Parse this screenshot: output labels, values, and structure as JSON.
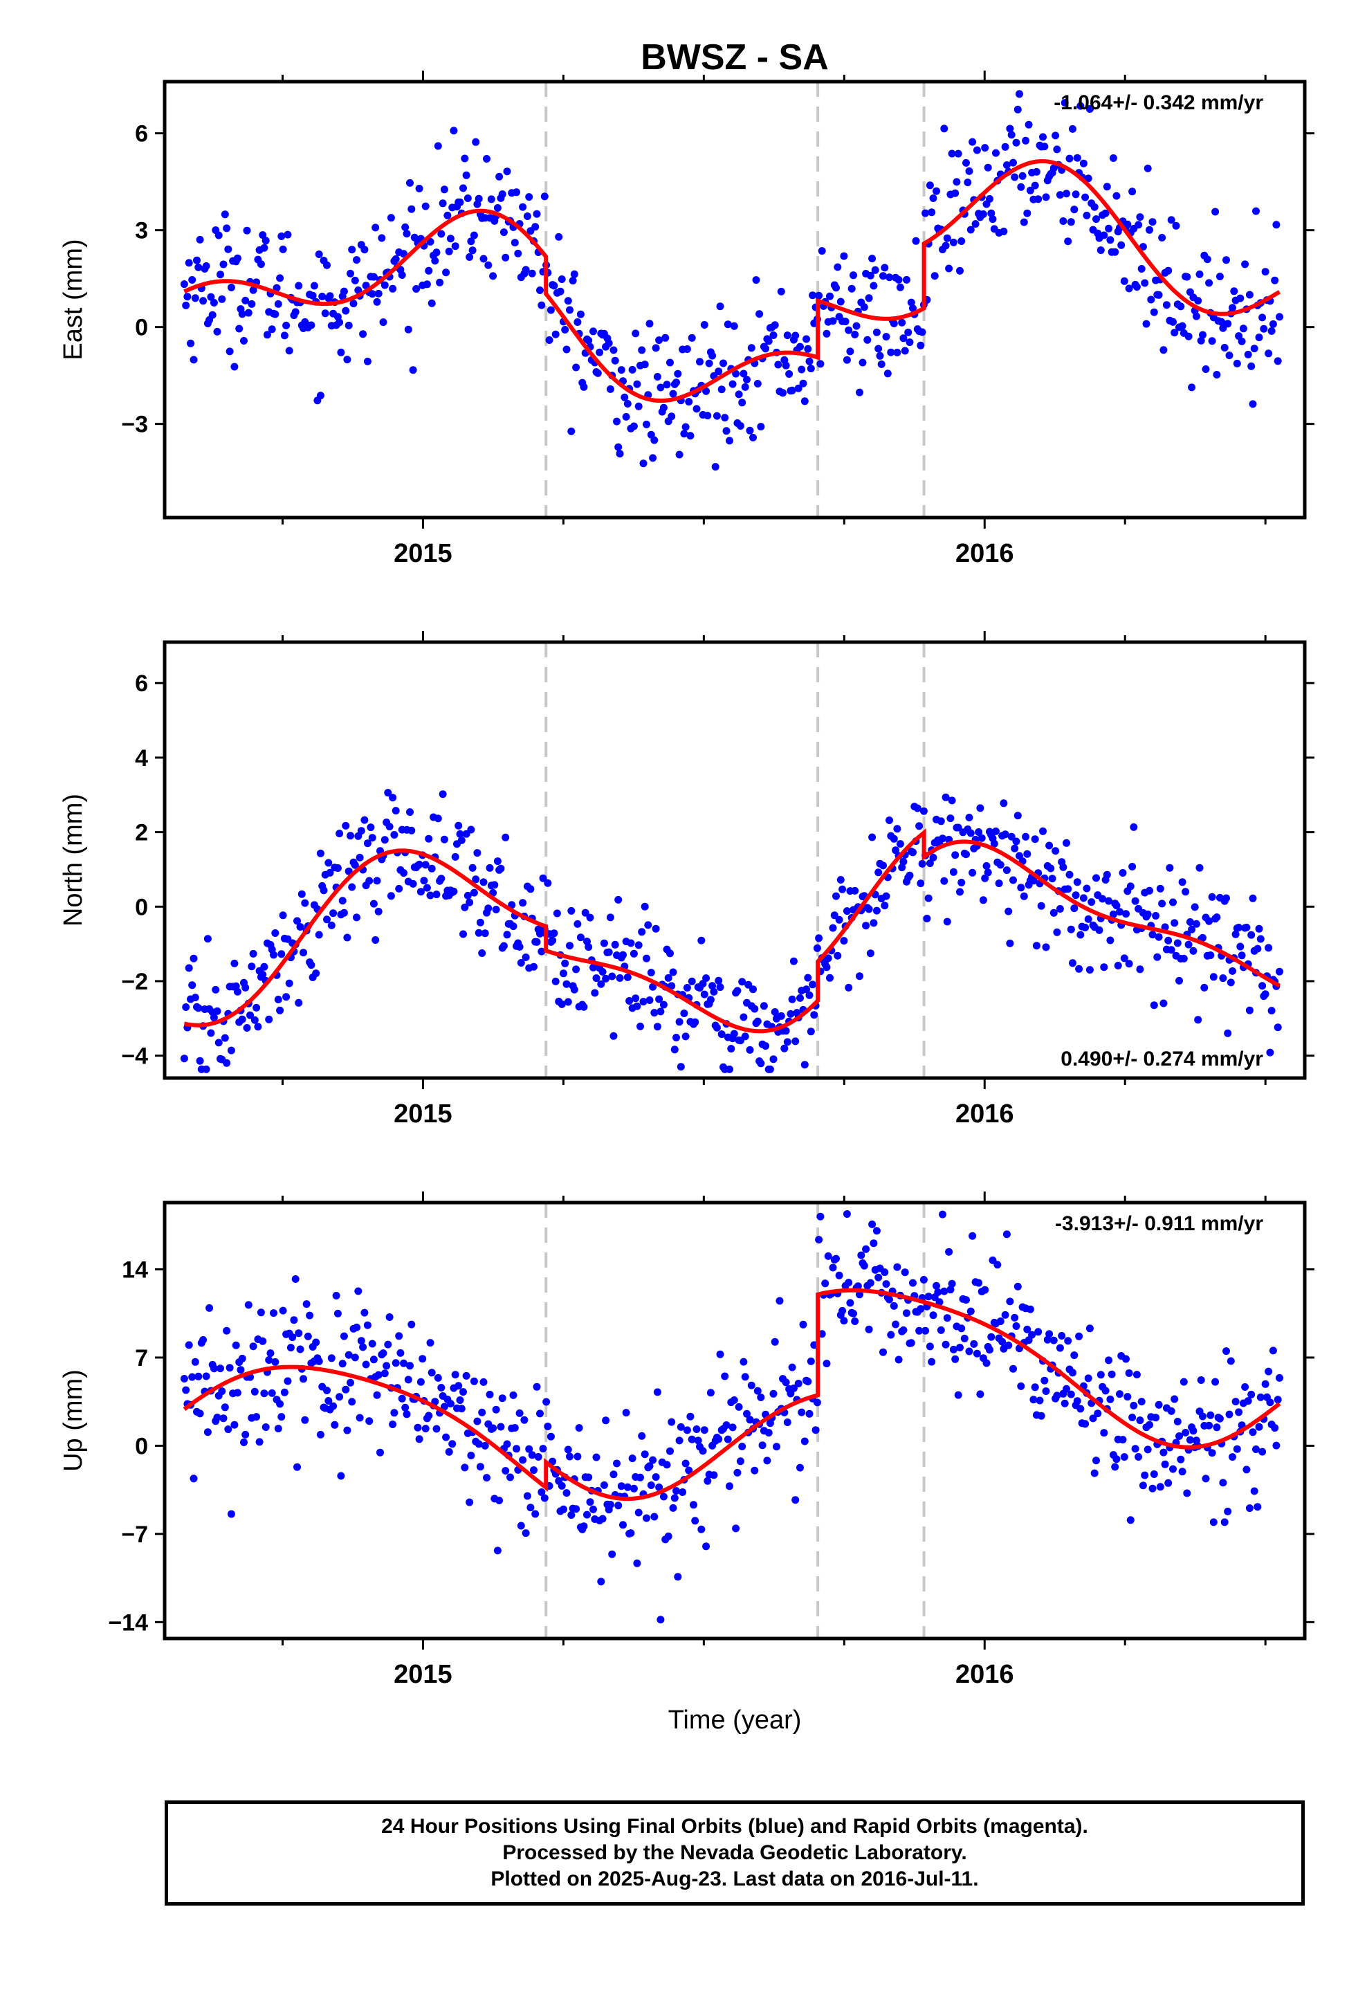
{
  "title": "BWSZ - SA",
  "xlabel": "Time (year)",
  "footer": {
    "line1": "24 Hour Positions Using Final Orbits (blue) and Rapid Orbits (magenta).",
    "line2": "Processed by the Nevada Geodetic Laboratory.",
    "line3": "Plotted on 2025-Aug-23. Last data on 2016-Jul-11."
  },
  "colors": {
    "final_orbit_points": "#0000ff",
    "model_fit": "#ff0000",
    "break_lines": "#c8c8c8"
  },
  "chart_data": [
    {
      "type": "scatter",
      "panel": "east",
      "ylabel": "East (mm)",
      "rate_text": "-1.064+/- 0.342 mm/yr",
      "rate_position": "top-right",
      "xlim": [
        2014.54,
        2016.57
      ],
      "ylim": [
        -5.9,
        7.6
      ],
      "yticks": [
        -3,
        0,
        3,
        6
      ],
      "ytick_labels": [
        "−3",
        "0",
        "3",
        "6"
      ],
      "xticks": [
        2015,
        2016
      ],
      "xtick_labels": [
        "2015",
        "2016"
      ],
      "minor_xticks": [
        2014.75,
        2015.25,
        2015.5,
        2015.75,
        2016.25,
        2016.5
      ],
      "breaks": [
        2015.219,
        2015.703,
        2015.892
      ],
      "fit": {
        "trend": -1.064,
        "offset": 0.7,
        "ann": [
          0.5,
          1.4
        ],
        "semi": [
          1.1,
          0.0
        ],
        "steps": [
          [
            2015.219,
            -1.15
          ],
          [
            2015.703,
            1.75
          ],
          [
            2015.892,
            2.0
          ]
        ]
      },
      "noise_sd": 1.05,
      "grid": false
    },
    {
      "type": "scatter",
      "panel": "north",
      "ylabel": "North (mm)",
      "rate_text": "0.490+/- 0.274 mm/yr",
      "rate_position": "bottom-right",
      "xlim": [
        2014.54,
        2016.57
      ],
      "ylim": [
        -4.6,
        7.1
      ],
      "yticks": [
        -4,
        -2,
        0,
        2,
        4,
        6
      ],
      "ytick_labels": [
        "−4",
        "−2",
        "0",
        "2",
        "4",
        "6"
      ],
      "xticks": [
        2015,
        2016
      ],
      "xtick_labels": [
        "2015",
        "2016"
      ],
      "minor_xticks": [
        2014.75,
        2015.25,
        2015.5,
        2015.75,
        2016.25,
        2016.5
      ],
      "breaks": [
        2015.219,
        2015.703,
        2015.892
      ],
      "fit": {
        "trend": 0.49,
        "offset": -0.55,
        "ann": [
          0.3,
          1.9
        ],
        "semi": [
          -0.6,
          0.3
        ],
        "steps": [
          [
            2015.219,
            -0.65
          ],
          [
            2015.703,
            1.05
          ],
          [
            2015.892,
            -0.65
          ]
        ]
      },
      "noise_sd": 0.8,
      "grid": false
    },
    {
      "type": "scatter",
      "panel": "up",
      "ylabel": "Up (mm)",
      "rate_text": "-3.913+/- 0.911 mm/yr",
      "rate_position": "top-right",
      "xlim": [
        2014.54,
        2016.57
      ],
      "ylim": [
        -15.3,
        19.3
      ],
      "yticks": [
        -14,
        -7,
        0,
        7,
        14
      ],
      "ytick_labels": [
        "−14",
        "−7",
        "0",
        "7",
        "14"
      ],
      "xticks": [
        2015,
        2016
      ],
      "xtick_labels": [
        "2015",
        "2016"
      ],
      "minor_xticks": [
        2014.75,
        2015.25,
        2015.5,
        2015.75,
        2016.25,
        2016.5
      ],
      "breaks": [
        2015.219,
        2015.703,
        2015.892
      ],
      "fit": {
        "trend": -3.913,
        "offset": -1.0,
        "ann": [
          -4.3,
          2.6
        ],
        "semi": [
          0.8,
          0.0
        ],
        "steps": [
          [
            2015.219,
            2.0
          ],
          [
            2015.703,
            8.0
          ],
          [
            2015.892,
            0.0
          ]
        ]
      },
      "noise_sd": 3.0,
      "grid": false
    }
  ]
}
